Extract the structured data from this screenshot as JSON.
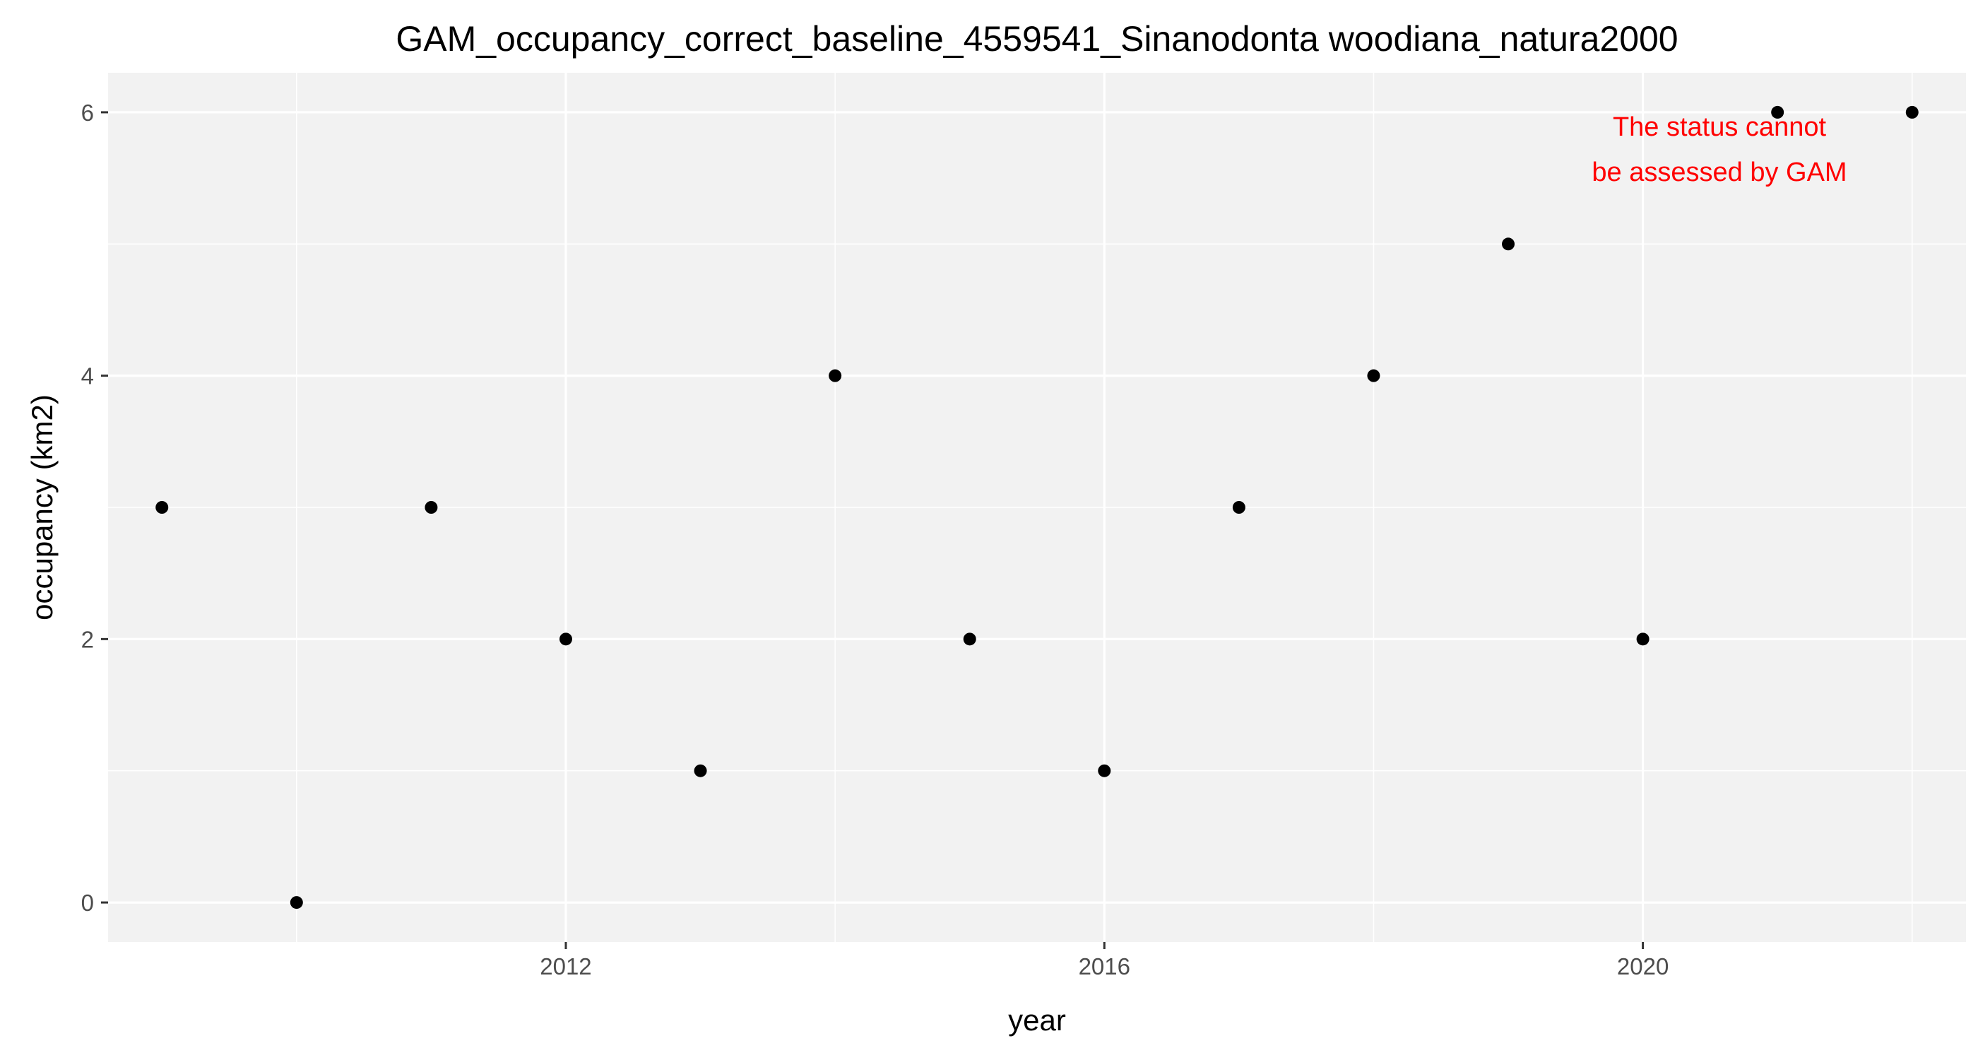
{
  "chart_data": {
    "type": "scatter",
    "title": "GAM_occupancy_correct_baseline_4559541_Sinanodonta woodiana_natura2000",
    "xlabel": "year",
    "ylabel": "occupancy (km2)",
    "x": [
      2009,
      2010,
      2011,
      2012,
      2013,
      2014,
      2015,
      2016,
      2017,
      2018,
      2019,
      2020,
      2021,
      2022
    ],
    "y": [
      3,
      0,
      3,
      2,
      1,
      4,
      2,
      1,
      3,
      4,
      5,
      2,
      6,
      6
    ],
    "xlim": [
      2008.6,
      2022.4
    ],
    "ylim": [
      -0.3,
      6.3
    ],
    "xticks": [
      2012,
      2016,
      2020
    ],
    "yticks": [
      0,
      2,
      4,
      6
    ],
    "xminor": [
      2010,
      2014,
      2018,
      2022
    ],
    "yminor": [
      1,
      3,
      5
    ],
    "grid": true,
    "legend": "none",
    "annotation": [
      "The status cannot",
      "be assessed by GAM"
    ],
    "colors": {
      "panel": "#f2f2f2",
      "grid": "#ffffff",
      "point": "#000000",
      "annotation": "#ff0000",
      "tick_text": "#4d4d4d",
      "tick_mark": "#333333"
    }
  }
}
